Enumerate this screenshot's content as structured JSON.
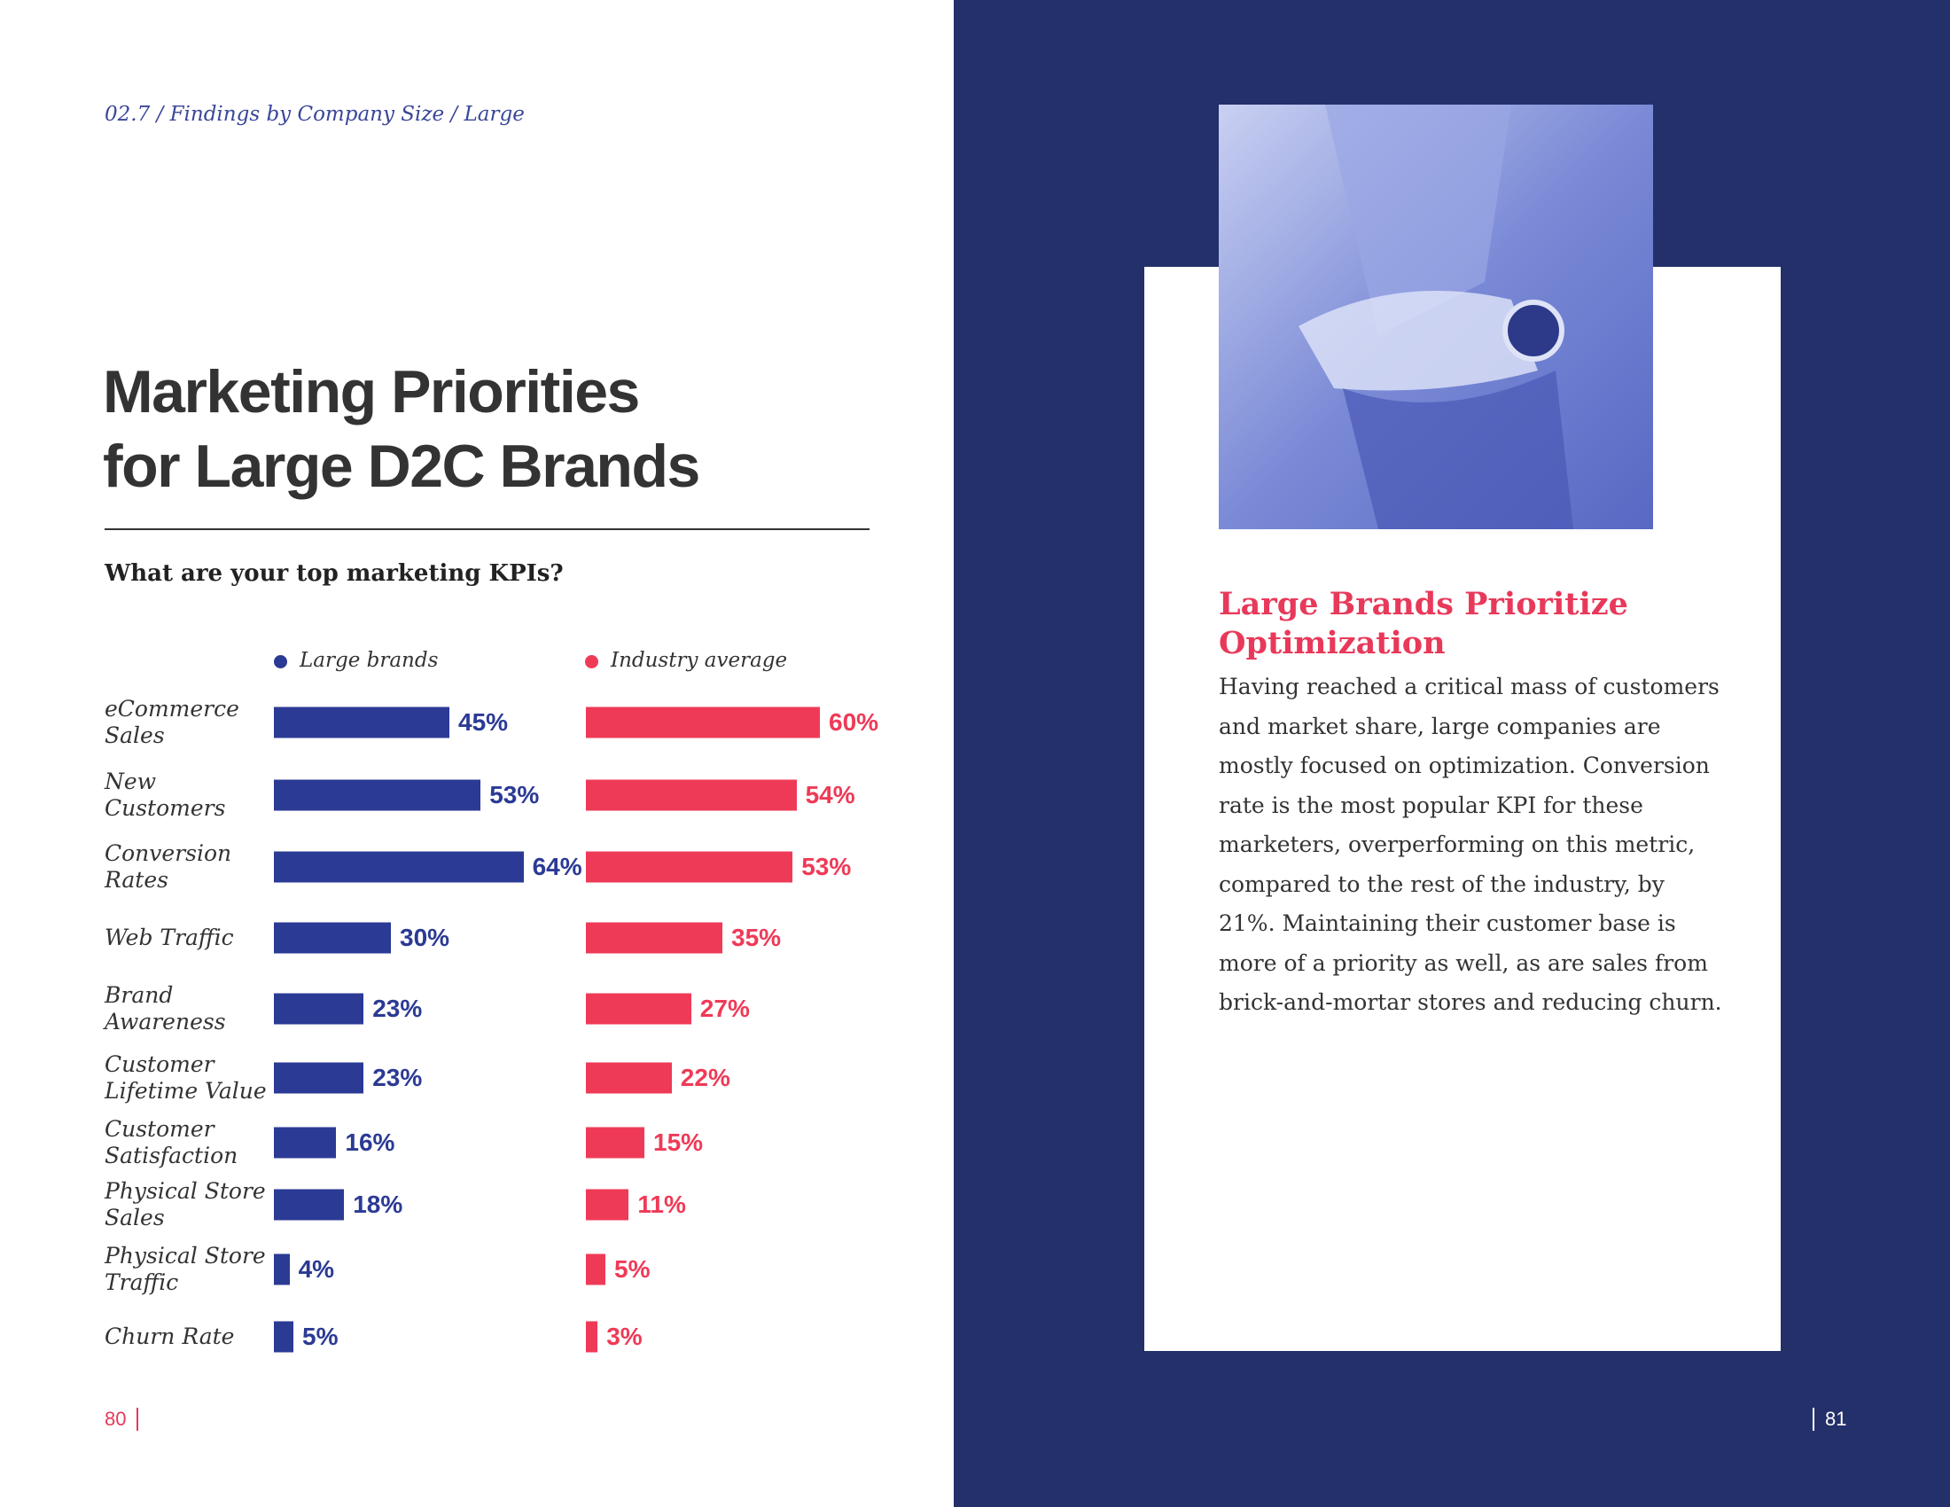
{
  "header": {
    "breadcrumb": "02.7 / Findings by Company Size / Large"
  },
  "title": {
    "lines": [
      "Marketing Priorities",
      "for Large D2C Brands"
    ]
  },
  "chart_data": {
    "type": "bar",
    "orientation": "horizontal",
    "question": "What are your top marketing KPIs?",
    "categories": [
      "eCommerce Sales",
      "New Customers",
      "Conversion Rates",
      "Web Traffic",
      "Brand Awareness",
      "Customer Lifetime Value",
      "Customer Satisfaction",
      "Physical Store Sales",
      "Physical Store Traffic",
      "Churn Rate"
    ],
    "series": [
      {
        "name": "Large brands",
        "color": "#2b3a94",
        "values": [
          45,
          53,
          64,
          30,
          23,
          23,
          16,
          18,
          4,
          5
        ],
        "value_labels": [
          "45%",
          "53%",
          "64%",
          "30%",
          "23%",
          "23%",
          "16%",
          "18%",
          "4%",
          "5%"
        ]
      },
      {
        "name": "Industry average",
        "color": "#ef3a57",
        "values": [
          60,
          54,
          53,
          35,
          27,
          22,
          15,
          11,
          5,
          3
        ],
        "value_labels": [
          "60%",
          "54%",
          "53%",
          "35%",
          "27%",
          "22%",
          "15%",
          "11%",
          "5%",
          "3%"
        ]
      }
    ]
  },
  "sidebar": {
    "heading": "Large Brands Prioritize Optimization",
    "body": "Having reached a critical mass of customers and market share, large companies are mostly focused on optimization. Conversion rate is the most popular KPI for these marketers, overperforming on this metric, compared to the rest of the industry, by 21%. Maintaining their customer base is more of a priority as well, as are sales from brick-and-mortar stores and reducing churn."
  },
  "footer": {
    "left_page": "80",
    "right_page": "81"
  }
}
